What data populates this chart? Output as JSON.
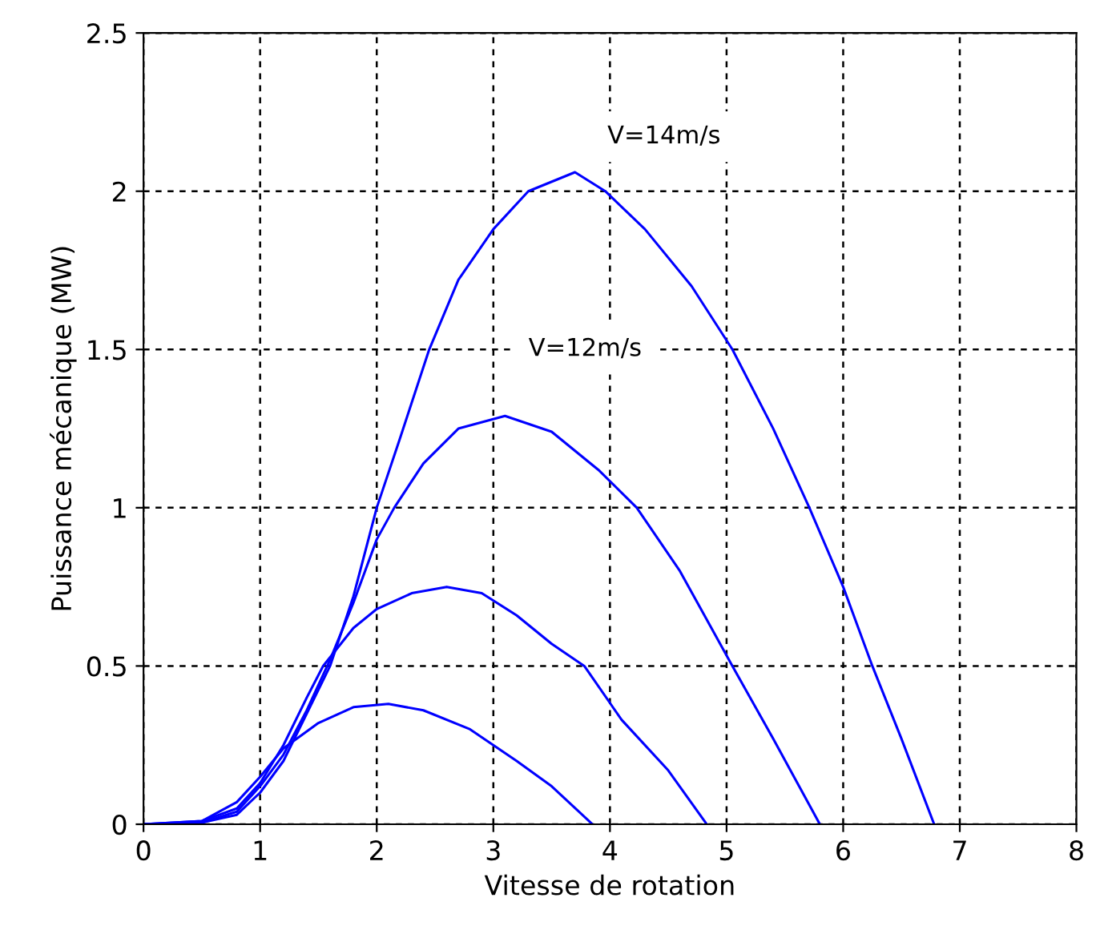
{
  "chart_data": {
    "type": "line",
    "xlabel": "Vitesse de rotation",
    "ylabel": "Puissance mécanique (MW)",
    "xlim": [
      0,
      8
    ],
    "ylim": [
      0,
      2.5
    ],
    "xticks": [
      0,
      1,
      2,
      3,
      4,
      5,
      6,
      7,
      8
    ],
    "yticks": [
      0,
      0.5,
      1,
      1.5,
      2,
      2.5
    ],
    "grid": true,
    "line_style": "solid",
    "marker": "none",
    "series": [
      {
        "name": "V=14m/s",
        "color": "#0000ff",
        "x": [
          0,
          0.5,
          0.8,
          1,
          1.2,
          1.4,
          1.6,
          1.8,
          2,
          2.2,
          2.45,
          2.7,
          3,
          3.3,
          3.7,
          3.96,
          4.3,
          4.7,
          5.05,
          5.4,
          5.71,
          6,
          6.25,
          6.5,
          6.78
        ],
        "values": [
          0,
          0.005,
          0.03,
          0.1,
          0.2,
          0.35,
          0.5,
          0.72,
          1.0,
          1.22,
          1.5,
          1.72,
          1.88,
          2.0,
          2.06,
          2.0,
          1.88,
          1.7,
          1.5,
          1.25,
          1.0,
          0.75,
          0.5,
          0.27,
          0
        ]
      },
      {
        "name": "V=12m/s",
        "color": "#0000ff",
        "x": [
          0,
          0.5,
          0.8,
          1,
          1.2,
          1.4,
          1.6,
          1.8,
          2,
          2.15,
          2.4,
          2.7,
          3.1,
          3.5,
          3.9,
          4.23,
          4.6,
          5.05,
          5.4,
          5.8
        ],
        "values": [
          0,
          0.005,
          0.04,
          0.12,
          0.22,
          0.36,
          0.52,
          0.7,
          0.9,
          1.0,
          1.14,
          1.25,
          1.29,
          1.24,
          1.12,
          1.0,
          0.8,
          0.5,
          0.27,
          0
        ]
      },
      {
        "color": "#0000ff",
        "x": [
          0,
          0.5,
          0.8,
          1,
          1.2,
          1.4,
          1.54,
          1.8,
          2,
          2.3,
          2.6,
          2.9,
          3.2,
          3.5,
          3.78,
          4.1,
          4.5,
          4.83
        ],
        "values": [
          0,
          0.01,
          0.05,
          0.13,
          0.25,
          0.4,
          0.5,
          0.62,
          0.68,
          0.73,
          0.75,
          0.73,
          0.66,
          0.57,
          0.5,
          0.33,
          0.17,
          0
        ]
      },
      {
        "color": "#0000ff",
        "x": [
          0,
          0.5,
          0.8,
          1,
          1.2,
          1.5,
          1.8,
          2.1,
          2.4,
          2.8,
          3.2,
          3.5,
          3.85
        ],
        "values": [
          0,
          0.01,
          0.07,
          0.15,
          0.24,
          0.32,
          0.37,
          0.38,
          0.36,
          0.3,
          0.2,
          0.12,
          0
        ]
      }
    ]
  }
}
